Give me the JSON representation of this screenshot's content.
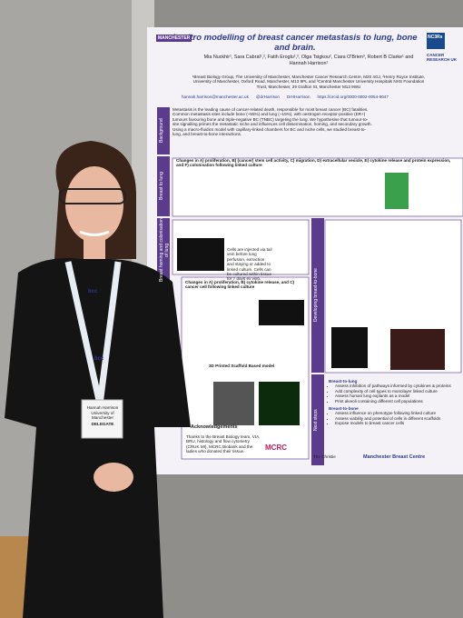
{
  "poster": {
    "title": "In vitro modelling of breast cancer metastasis to lung, bone and brain.",
    "authors": "Mia Nuckhir¹, Sara Cabral¹,², Fatih Eroglu¹,², Olga Tsigkou², Ciara O'Brien³, Robert B Clarke¹ and Hannah Harrison¹",
    "affiliations": "¹Breast Biology Group, The University of Manchester, Manchester Cancer Research Centre, M20 4GJ, ²Henry Royce Institute, University of Manchester, Oxford Road, Manchester, M13 9PL and ³Central Manchester University Hospitals NHS Foundation Trust, Manchester, 29 Grafton St, Manchester M13 9WU",
    "contacts": [
      "hannah.harrison@manchester.ac.uk",
      "@drHarrison",
      "DrHHarrison",
      "https://orcid.org/0000-0002-0054-8047"
    ],
    "logos": {
      "left": "MANCHESTER",
      "nc3rs": "NC3Rs",
      "cruk": "CANCER RESEARCH UK",
      "mcrc": "MCRC",
      "christie": "The Christie",
      "mbc": "Manchester Breast Centre"
    },
    "background": {
      "label": "Background",
      "text": "Metastasis is the leading cause of cancer-related death, responsible for most breast cancer (BC) fatalities. Common metastasis sites include bone (~55%) and lung (~15%), with oestrogen receptor-positive (ER+) tumours favouring bone and triple-negative BC (TNBC) targeting the lung. We hypothesise that tumour-to-site signalling primes the metastatic niche and influences cell dissemination, homing, and secondary growth. Using a macro-fluidics model with capillary-linked chambers for BC and niche cells, we studied breast-to-lung, and breast-to-bone interactions."
    },
    "lung": {
      "label": "Breast to lung",
      "heading": "Changes in A) proliferation, B) (cancer) stem cell activity, C) migration, D) extracellular vesicle, E) cytokine release and protein expression, and F) colonisation following linked culture"
    },
    "homing": {
      "label": "Breast homing and colonisation of lung",
      "text": "Cells are injected via tail vein before lung perfusion, extraction and staying or added to linked culture. Cells can be cultured within tissue for 7 days ex vivo."
    },
    "bone": {
      "label": "Developing breast-to-bone",
      "heading": "Changes in A) proliferation, B) cytokine release, and C) cancer cell following linked culture",
      "scaffold": "3D Printed Scaffold Based model"
    },
    "acknowledgements": {
      "heading": "Acknowledgements",
      "text": "Thanks to the Breast Biology team, VIA, BRU, histology and flow cytometry (CRUK MI), MCRC Biobank and the ladies who donated their tissue."
    },
    "next": {
      "label": "Next steps",
      "lung_heading": "Breast-to-lung",
      "lung_items": [
        "Assess inhibition of pathways informed by cytokines & proteins",
        "Add complexity of cell types to monolayer linked culture",
        "Assess human lung explants as a model",
        "Print alveoli containing different cell populations"
      ],
      "bone_heading": "Breast-to-bone",
      "bone_items": [
        "Assess influence on phenotype following linked culture",
        "Assess viability and potential of cells in different scaffolds",
        "Expose models to breast cancer cells"
      ]
    }
  },
  "badge": {
    "name": "Hannah Harrison",
    "org": "University of Manchester",
    "role": "DELEGATE",
    "lanyard": "bcc"
  }
}
